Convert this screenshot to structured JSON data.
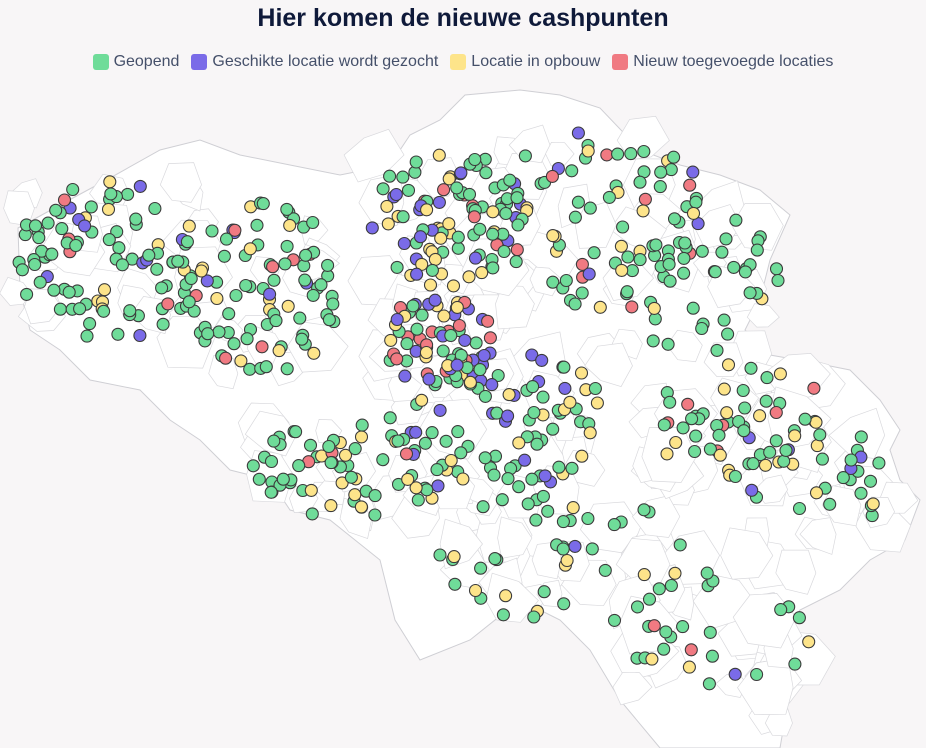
{
  "title": "Hier komen de nieuwe cashpunten",
  "legend": [
    {
      "label": "Geopend",
      "color": "#6fdc99"
    },
    {
      "label": "Geschikte locatie wordt gezocht",
      "color": "#7a6be8"
    },
    {
      "label": "Locatie in opbouw",
      "color": "#fde48a"
    },
    {
      "label": "Nieuw toegevoegde locaties",
      "color": "#f07a82"
    }
  ]
}
